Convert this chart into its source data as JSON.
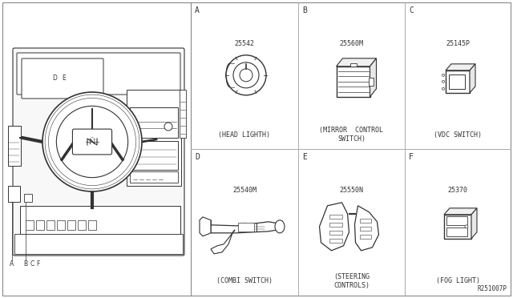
{
  "bg_color": "#ffffff",
  "border_color": "#aaaaaa",
  "text_color": "#333333",
  "diagram_ref": "R251007P",
  "sections": [
    {
      "id": "A",
      "part": "25542",
      "label": "(HEAD LIGHTH)"
    },
    {
      "id": "B",
      "part": "25560M",
      "label": "(MIRROR  CONTROL\nSWITCH)"
    },
    {
      "id": "C",
      "part": "25145P",
      "label": "(VDC SWITCH)"
    },
    {
      "id": "D",
      "part": "25540M",
      "label": "(COMBI SWITCH)"
    },
    {
      "id": "E",
      "part": "25550N",
      "label": "(STEERING\nCONTROLS)"
    },
    {
      "id": "F",
      "part": "25370",
      "label": "(FOG LIGHT)"
    }
  ]
}
